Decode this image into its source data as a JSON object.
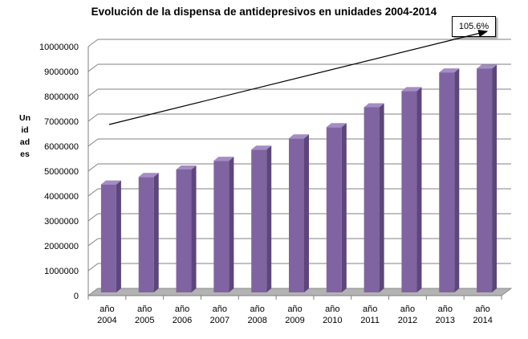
{
  "chart_data": {
    "type": "bar",
    "title": "Evolución de la dispensa de antidepresivos en unidades 2004-2014",
    "ylabel": "Unidades",
    "xlabel": "",
    "categories": [
      "año 2004",
      "año 2005",
      "año 2006",
      "año 2007",
      "año 2008",
      "año 2009",
      "año 2010",
      "año 2011",
      "año 2012",
      "año 2013",
      "año 2014"
    ],
    "values": [
      4400000,
      4700000,
      5000000,
      5350000,
      5800000,
      6250000,
      6700000,
      7500000,
      8150000,
      8900000,
      9050000
    ],
    "ylim": [
      0,
      10000000
    ],
    "yticks": [
      "0",
      "1000000",
      "2000000",
      "3000000",
      "4000000",
      "5000000",
      "6000000",
      "7000000",
      "8000000",
      "9000000",
      "10000000"
    ],
    "grid": true,
    "annotation": "105.6%",
    "colors": {
      "bar": "#8064a2",
      "bar_side": "#5c467a",
      "bar_top": "#a48cc4",
      "grid": "#808080"
    }
  }
}
